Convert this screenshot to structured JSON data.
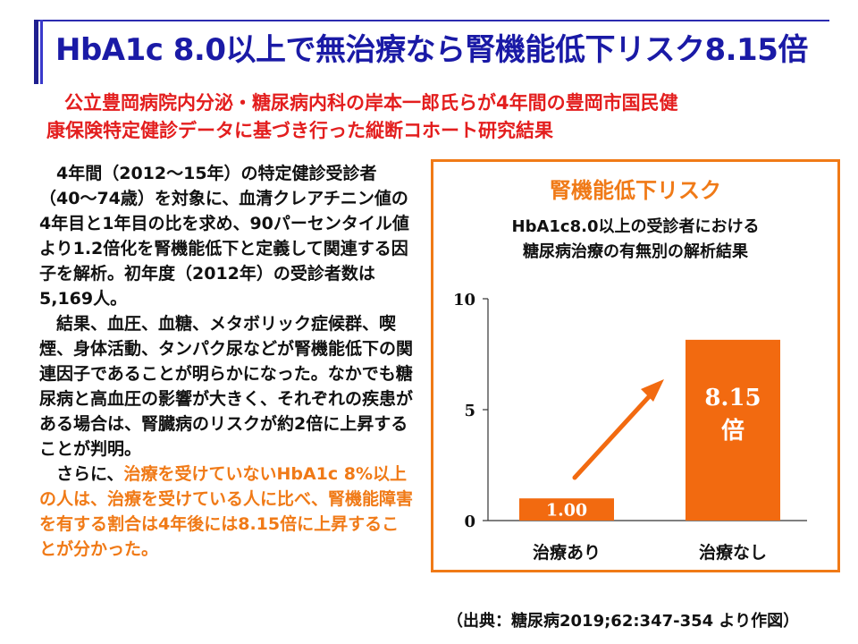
{
  "slide": {
    "title": "HbA1c 8.0以上で無治療なら腎機能低下リスク8.15倍",
    "subtitle_line1": "公立豊岡病院内分泌・糖尿病内科の岸本一郎氏らが4年間の豊岡市国民健",
    "subtitle_line2": "康保険特定健診データに基づき行った縦断コホート研究結果",
    "body_para1": "4年間（2012～15年）の特定健診受診者（40～74歳）を対象に、血清クレアチニン値の4年目と1年目の比を求め、90パーセンタイル値より1.2倍化を腎機能低下と定義して関連する因子を解析。初年度（2012年）の受診者数は5,169人。",
    "body_para2": "結果、血圧、血糖、メタボリック症候群、喫煙、身体活動、タンパク尿などが腎機能低下の関連因子であることが明らかになった。なかでも糖尿病と高血圧の影響が大きく、それぞれの疾患がある場合は、腎臓病のリスクが約2倍に上昇することが判明。",
    "body_para3_lead": "さらに、",
    "body_para3_highlight": "治療を受けていないHbA1c 8%以上の人は、治療を受けている人に比べ、腎機能障害を有する割合は4年後には8.15倍に上昇することが分かった。",
    "source": "（出典：糖尿病2019;62:347-354 より作図）"
  },
  "colors": {
    "title": "#1a1aa6",
    "subtitle": "#e31e1e",
    "accent": "#f07a17",
    "bar_fill": "#f26a10",
    "text": "#111111"
  },
  "chart_data": {
    "type": "bar",
    "title": "腎機能低下リスク",
    "subtitle_line1": "HbA1c8.0以上の受診者における",
    "subtitle_line2": "糖尿病治療の有無別の解析結果",
    "categories": [
      "治療あり",
      "治療なし"
    ],
    "values": [
      1.0,
      8.15
    ],
    "data_labels": [
      "1.00",
      "8.15"
    ],
    "data_label_suffix": "倍",
    "ylim": [
      0,
      10
    ],
    "yticks": [
      0,
      5,
      10
    ],
    "ytick_labels": [
      "0",
      "5",
      "10"
    ],
    "grid": false,
    "legend": "none",
    "annotation": "upward-arrow"
  }
}
